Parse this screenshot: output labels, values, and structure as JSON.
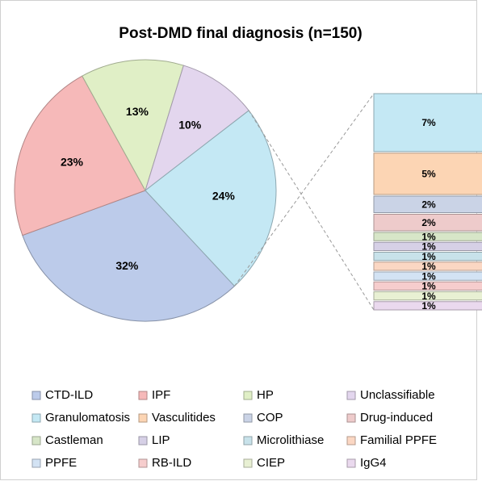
{
  "chart_data": {
    "type": "pie",
    "title": "Post-DMD final diagnosis (n=150)",
    "pie": {
      "categories": [
        "CTD-ILD",
        "IPF",
        "HP",
        "Unclassifiable",
        null
      ],
      "values": [
        32,
        23,
        13,
        10,
        24
      ],
      "value_labels": [
        "32%",
        "23%",
        "13%",
        "10%",
        "24%"
      ],
      "colors": [
        "#bccbea",
        "#f6b9b9",
        "#e0efc6",
        "#e3d6ee",
        "#c4e8f4"
      ]
    },
    "bar": {
      "categories": [
        "Granulomatosis",
        "Vasculitides",
        "COP",
        "Drug-induced",
        "Castleman",
        "LIP",
        "Microlithiase",
        "Familial PPFE",
        "PPFE",
        "RB-ILD",
        "CIEP",
        "IgG4"
      ],
      "values": [
        7,
        5,
        2,
        2,
        1,
        1,
        1,
        1,
        1,
        1,
        1,
        1
      ],
      "value_labels": [
        "7%",
        "5%",
        "2%",
        "2%",
        "1%",
        "1%",
        "1%",
        "1%",
        "1%",
        "1%",
        "1%",
        "1%"
      ],
      "colors": [
        "#c4e8f4",
        "#fcd5b4",
        "#cad3e6",
        "#eecbcb",
        "#d7e6c8",
        "#d6d0e6",
        "#c8e2ea",
        "#fbd7c3",
        "#d3e3f4",
        "#f6cdcd",
        "#e8f0d3",
        "#ead9ee"
      ]
    }
  }
}
